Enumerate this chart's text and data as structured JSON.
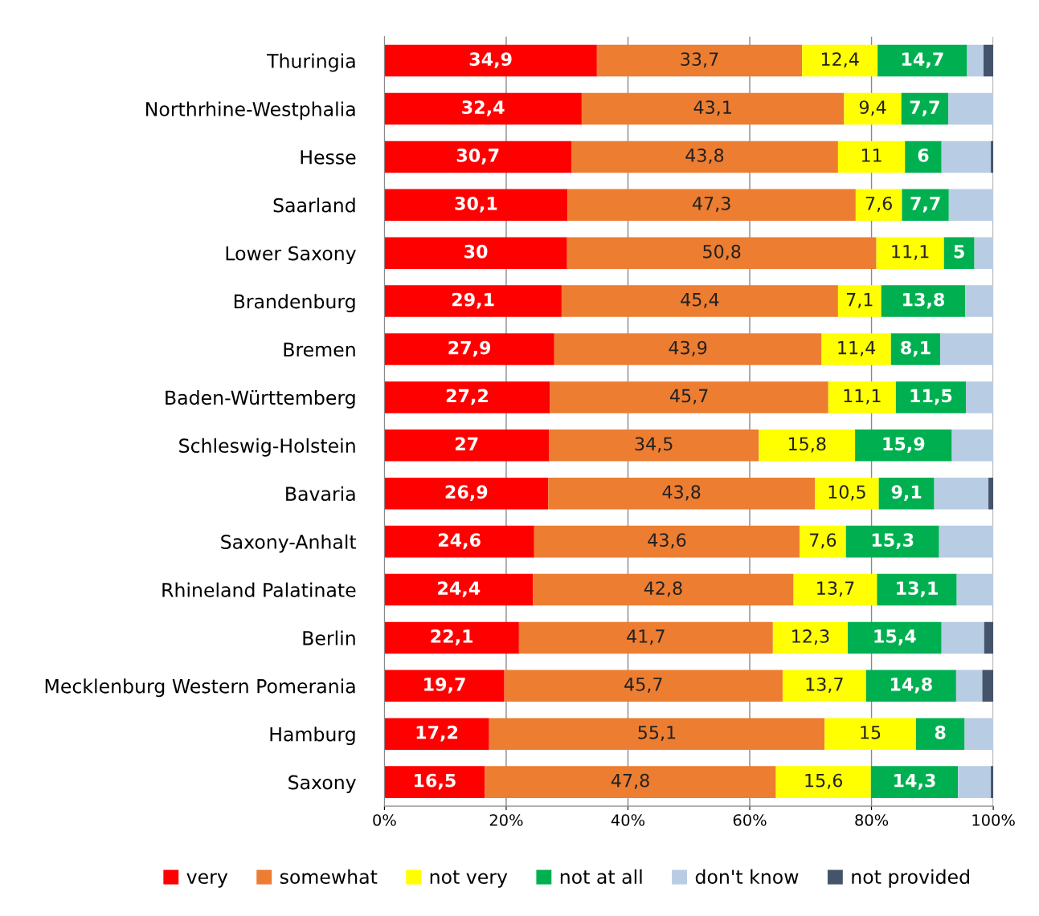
{
  "chart_data": {
    "type": "bar",
    "orientation": "horizontal",
    "stacked": true,
    "categories": [
      "Thuringia",
      "Northrhine-Westphalia",
      "Hesse",
      "Saarland",
      "Lower Saxony",
      "Brandenburg",
      "Bremen",
      "Baden-Württemberg",
      "Schleswig-Holstein",
      "Bavaria",
      "Saxony-Anhalt",
      "Rhineland Palatinate",
      "Berlin",
      "Mecklenburg Western Pomerania",
      "Hamburg",
      "Saxony"
    ],
    "series": [
      {
        "name": "very",
        "color": "#ff0000",
        "values": [
          34.9,
          32.4,
          30.7,
          30.1,
          30,
          29.1,
          27.9,
          27.2,
          27,
          26.9,
          24.6,
          24.4,
          22.1,
          19.7,
          17.2,
          16.5
        ],
        "value_labels": [
          "34,9",
          "32,4",
          "30,7",
          "30,1",
          "30",
          "29,1",
          "27,9",
          "27,2",
          "27",
          "26,9",
          "24,6",
          "24,4",
          "22,1",
          "19,7",
          "17,2",
          "16,5"
        ]
      },
      {
        "name": "somewhat",
        "color": "#ed7d31",
        "values": [
          33.7,
          43.1,
          43.8,
          47.3,
          50.8,
          45.4,
          43.9,
          45.7,
          34.5,
          43.8,
          43.6,
          42.8,
          41.7,
          45.7,
          55.1,
          47.8
        ],
        "value_labels": [
          "33,7",
          "43,1",
          "43,8",
          "47,3",
          "50,8",
          "45,4",
          "43,9",
          "45,7",
          "34,5",
          "43,8",
          "43,6",
          "42,8",
          "41,7",
          "45,7",
          "55,1",
          "47,8"
        ]
      },
      {
        "name": "not very",
        "color": "#ffff00",
        "values": [
          12.4,
          9.4,
          11,
          7.6,
          11.1,
          7.1,
          11.4,
          11.1,
          15.8,
          10.5,
          7.6,
          13.7,
          12.3,
          13.7,
          15,
          15.6
        ],
        "value_labels": [
          "12,4",
          "9,4",
          "11",
          "7,6",
          "11,1",
          "7,1",
          "11,4",
          "11,1",
          "15,8",
          "10,5",
          "7,6",
          "13,7",
          "12,3",
          "13,7",
          "15",
          "15,6"
        ]
      },
      {
        "name": "not at all",
        "color": "#00b050",
        "values": [
          14.7,
          7.7,
          6,
          7.7,
          5,
          13.8,
          8.1,
          11.5,
          15.9,
          9.1,
          15.3,
          13.1,
          15.4,
          14.8,
          8,
          14.3
        ],
        "value_labels": [
          "14,7",
          "7,7",
          "6",
          "7,7",
          "5",
          "13,8",
          "8,1",
          "11,5",
          "15,9",
          "9,1",
          "15,3",
          "13,1",
          "15,4",
          "14,8",
          "8",
          "14,3"
        ]
      },
      {
        "name": "don't know",
        "color": "#b8cce4",
        "values": [
          2.7,
          7.4,
          8.1,
          7.3,
          3.1,
          4.6,
          8.7,
          4.5,
          6.8,
          8.9,
          8.9,
          6,
          7,
          4.3,
          4.7,
          5.4
        ]
      },
      {
        "name": "not provided",
        "color": "#44546a",
        "values": [
          1.6,
          0,
          0.4,
          0,
          0,
          0,
          0,
          0,
          0,
          0.8,
          0,
          0,
          1.5,
          1.8,
          0,
          0.4
        ]
      }
    ],
    "xlim": [
      0,
      100
    ],
    "xticks": [
      {
        "value": 0,
        "label": "0%"
      },
      {
        "value": 20,
        "label": "20%"
      },
      {
        "value": 40,
        "label": "40%"
      },
      {
        "value": 60,
        "label": "60%"
      },
      {
        "value": 80,
        "label": "80%"
      },
      {
        "value": 100,
        "label": "100%"
      }
    ],
    "grid": "x",
    "legend": "bottom"
  }
}
